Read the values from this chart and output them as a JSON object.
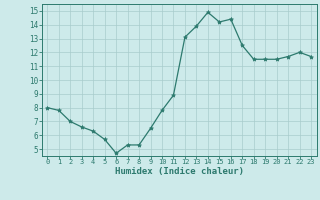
{
  "x": [
    0,
    1,
    2,
    3,
    4,
    5,
    6,
    7,
    8,
    9,
    10,
    11,
    12,
    13,
    14,
    15,
    16,
    17,
    18,
    19,
    20,
    21,
    22,
    23
  ],
  "y": [
    8.0,
    7.8,
    7.0,
    6.6,
    6.3,
    5.7,
    4.7,
    5.3,
    5.3,
    6.5,
    7.8,
    8.9,
    13.1,
    13.9,
    14.9,
    14.2,
    14.4,
    12.5,
    11.5,
    11.5,
    11.5,
    11.7,
    12.0,
    11.7
  ],
  "line_color": "#2d7a6e",
  "marker": "*",
  "marker_size": 3,
  "bg_color": "#cdeaea",
  "grid_color": "#a8cccc",
  "xlabel": "Humidex (Indice chaleur)",
  "ylim": [
    4.5,
    15.5
  ],
  "xlim": [
    -0.5,
    23.5
  ],
  "yticks": [
    5,
    6,
    7,
    8,
    9,
    10,
    11,
    12,
    13,
    14,
    15
  ],
  "xticks": [
    0,
    1,
    2,
    3,
    4,
    5,
    6,
    7,
    8,
    9,
    10,
    11,
    12,
    13,
    14,
    15,
    16,
    17,
    18,
    19,
    20,
    21,
    22,
    23
  ],
  "tick_color": "#2d7a6e",
  "label_color": "#2d7a6e",
  "axis_color": "#2d7a6e",
  "xlabel_fontsize": 6.5,
  "xtick_fontsize": 5.0,
  "ytick_fontsize": 5.5
}
